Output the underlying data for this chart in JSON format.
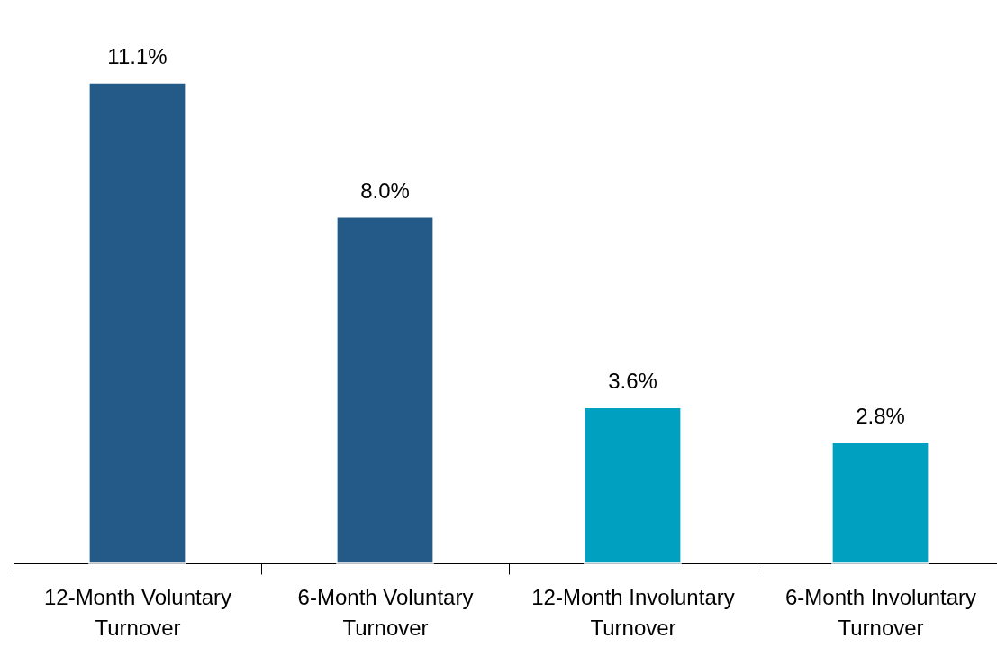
{
  "chart_data": {
    "type": "bar",
    "categories": [
      "12-Month Voluntary Turnover",
      "6-Month Voluntary Turnover",
      "12-Month Involuntary Turnover",
      "6-Month Involuntary Turnover"
    ],
    "values": [
      11.1,
      8.0,
      3.6,
      2.8
    ],
    "colors": [
      "#245a87",
      "#245a87",
      "#00a0c0",
      "#00a0c0"
    ],
    "value_labels": [
      "11.1%",
      "8.0%",
      "3.6%",
      "2.8%"
    ]
  }
}
